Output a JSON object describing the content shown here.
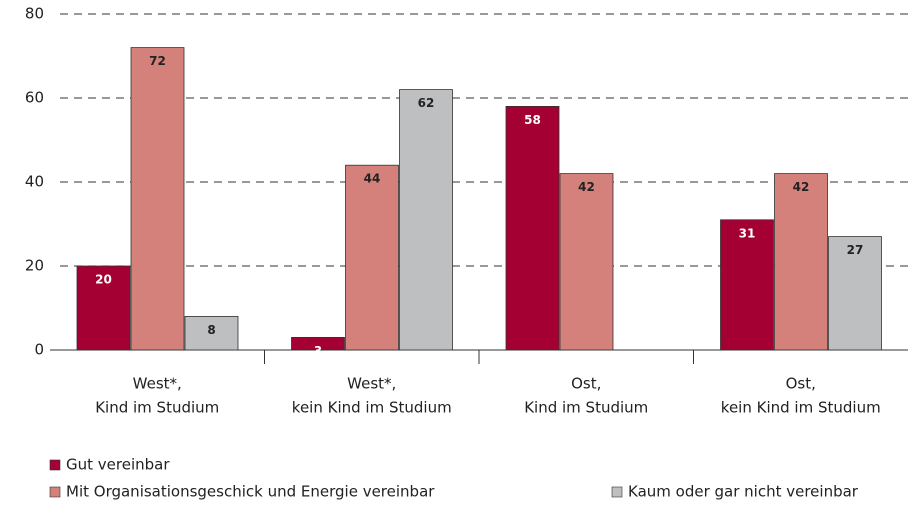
{
  "chart_data": {
    "type": "bar",
    "categories": [
      [
        "West*,",
        "Kind im Studium"
      ],
      [
        "West*,",
        "kein Kind im Studium"
      ],
      [
        "Ost,",
        "Kind im Studium"
      ],
      [
        "Ost,",
        "kein Kind im Studium"
      ]
    ],
    "series": [
      {
        "name": "Gut vereinbar",
        "color": "#a50034",
        "values": [
          20,
          3,
          58,
          31
        ]
      },
      {
        "name": "Mit Organisationsgeschick und Energie vereinbar",
        "color": "#d4817b",
        "values": [
          72,
          44,
          42,
          42
        ]
      },
      {
        "name": "Kaum oder gar nicht vereinbar",
        "color": "#bebfc1",
        "values": [
          8,
          62,
          null,
          27
        ]
      }
    ],
    "ylim": [
      0,
      80
    ],
    "yticks": [
      0,
      20,
      40,
      60,
      80
    ],
    "grid": true
  }
}
